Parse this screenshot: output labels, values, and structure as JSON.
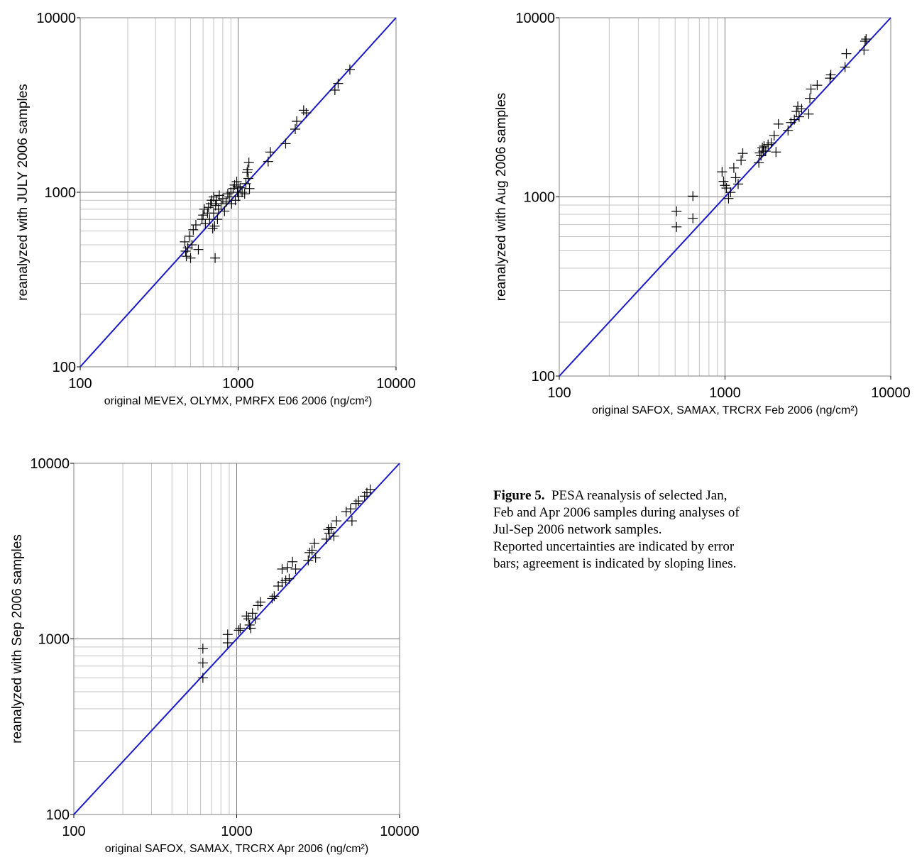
{
  "chart_data": [
    {
      "type": "scatter",
      "xlabel": "original MEVEX, OLYMX, PMRFX E06 2006 (ng/cm²)",
      "ylabel": "reanalyzed with JULY 2006 samples",
      "xscale": "log",
      "yscale": "log",
      "xlim": [
        100,
        10000
      ],
      "ylim": [
        100,
        10000
      ],
      "xticks": [
        "100",
        "1000",
        "10000"
      ],
      "yticks": [
        "100",
        "1000",
        "10000"
      ],
      "grid": true,
      "reference_line": {
        "from": [
          100,
          100
        ],
        "to": [
          10000,
          10000
        ],
        "color": "#1a1acc"
      },
      "points": [
        [
          460,
          520
        ],
        [
          465,
          460
        ],
        [
          470,
          430
        ],
        [
          480,
          480
        ],
        [
          490,
          560
        ],
        [
          500,
          420
        ],
        [
          510,
          500
        ],
        [
          520,
          610
        ],
        [
          540,
          650
        ],
        [
          560,
          470
        ],
        [
          590,
          700
        ],
        [
          600,
          740
        ],
        [
          610,
          800
        ],
        [
          620,
          660
        ],
        [
          640,
          760
        ],
        [
          650,
          820
        ],
        [
          660,
          700
        ],
        [
          670,
          860
        ],
        [
          680,
          900
        ],
        [
          690,
          620
        ],
        [
          700,
          940
        ],
        [
          700,
          760
        ],
        [
          710,
          640
        ],
        [
          715,
          420
        ],
        [
          720,
          840
        ],
        [
          730,
          900
        ],
        [
          740,
          700
        ],
        [
          750,
          800
        ],
        [
          760,
          960
        ],
        [
          780,
          860
        ],
        [
          800,
          920
        ],
        [
          820,
          780
        ],
        [
          840,
          880
        ],
        [
          860,
          980
        ],
        [
          880,
          940
        ],
        [
          900,
          1000
        ],
        [
          910,
          860
        ],
        [
          930,
          1050
        ],
        [
          950,
          1100
        ],
        [
          960,
          900
        ],
        [
          980,
          1150
        ],
        [
          990,
          1000
        ],
        [
          1000,
          1080
        ],
        [
          1010,
          950
        ],
        [
          1030,
          1060
        ],
        [
          1060,
          1000
        ],
        [
          1100,
          980
        ],
        [
          1120,
          1120
        ],
        [
          1140,
          1300
        ],
        [
          1150,
          1350
        ],
        [
          1160,
          1200
        ],
        [
          1170,
          1480
        ],
        [
          1180,
          1050
        ],
        [
          1550,
          1500
        ],
        [
          1600,
          1700
        ],
        [
          2000,
          1900
        ],
        [
          2300,
          2300
        ],
        [
          2350,
          2550
        ],
        [
          2600,
          2950
        ],
        [
          2700,
          2850
        ],
        [
          4100,
          3850
        ],
        [
          4300,
          4200
        ],
        [
          5100,
          5050
        ]
      ]
    },
    {
      "type": "scatter",
      "xlabel": "original SAFOX, SAMAX, TRCRX Feb 2006 (ng/cm²)",
      "ylabel": "reanalyzed with Aug 2006 samples",
      "xscale": "log",
      "yscale": "log",
      "xlim": [
        100,
        10000
      ],
      "ylim": [
        100,
        10000
      ],
      "xticks": [
        "100",
        "1000",
        "10000"
      ],
      "yticks": [
        "100",
        "1000",
        "10000"
      ],
      "grid": true,
      "reference_line": {
        "from": [
          100,
          100
        ],
        "to": [
          10000,
          10000
        ],
        "color": "#1a1acc"
      },
      "points": [
        [
          510,
          830
        ],
        [
          510,
          680
        ],
        [
          640,
          1010
        ],
        [
          640,
          760
        ],
        [
          960,
          1380
        ],
        [
          980,
          1220
        ],
        [
          1000,
          1160
        ],
        [
          1020,
          1120
        ],
        [
          1050,
          980
        ],
        [
          1080,
          1060
        ],
        [
          1130,
          1450
        ],
        [
          1160,
          1280
        ],
        [
          1200,
          1180
        ],
        [
          1250,
          1600
        ],
        [
          1280,
          1750
        ],
        [
          1600,
          1550
        ],
        [
          1620,
          1760
        ],
        [
          1650,
          1700
        ],
        [
          1680,
          1880
        ],
        [
          1700,
          1800
        ],
        [
          1720,
          1920
        ],
        [
          1760,
          1800
        ],
        [
          1820,
          1960
        ],
        [
          1900,
          2000
        ],
        [
          1980,
          2200
        ],
        [
          2030,
          1780
        ],
        [
          2100,
          2550
        ],
        [
          2400,
          2350
        ],
        [
          2500,
          2600
        ],
        [
          2620,
          2700
        ],
        [
          2700,
          3000
        ],
        [
          2750,
          3200
        ],
        [
          2800,
          2800
        ],
        [
          2900,
          3100
        ],
        [
          3200,
          2900
        ],
        [
          3250,
          3550
        ],
        [
          3300,
          4000
        ],
        [
          3600,
          4200
        ],
        [
          4300,
          4600
        ],
        [
          4350,
          4800
        ],
        [
          5300,
          5300
        ],
        [
          5400,
          6300
        ],
        [
          6900,
          6600
        ],
        [
          7000,
          7400
        ],
        [
          7100,
          7600
        ]
      ]
    },
    {
      "type": "scatter",
      "xlabel": "original SAFOX, SAMAX, TRCRX Apr 2006 (ng/cm²)",
      "ylabel": "reanalyzed with Sep 2006 samples",
      "xscale": "log",
      "yscale": "log",
      "xlim": [
        100,
        10000
      ],
      "ylim": [
        100,
        10000
      ],
      "xticks": [
        "100",
        "1000",
        "10000"
      ],
      "yticks": [
        "100",
        "1000",
        "10000"
      ],
      "grid": true,
      "reference_line": {
        "from": [
          100,
          100
        ],
        "to": [
          10000,
          10000
        ],
        "color": "#1a1acc"
      },
      "points": [
        [
          620,
          880
        ],
        [
          620,
          730
        ],
        [
          620,
          600
        ],
        [
          880,
          1060
        ],
        [
          880,
          950
        ],
        [
          1030,
          1120
        ],
        [
          1050,
          1150
        ],
        [
          1150,
          1350
        ],
        [
          1180,
          1300
        ],
        [
          1200,
          1200
        ],
        [
          1220,
          1150
        ],
        [
          1250,
          1400
        ],
        [
          1300,
          1300
        ],
        [
          1350,
          1550
        ],
        [
          1400,
          1620
        ],
        [
          1650,
          1700
        ],
        [
          1700,
          1750
        ],
        [
          1800,
          2000
        ],
        [
          1900,
          2100
        ],
        [
          1900,
          2500
        ],
        [
          2000,
          2150
        ],
        [
          2050,
          2550
        ],
        [
          2100,
          2200
        ],
        [
          2200,
          2750
        ],
        [
          2300,
          2500
        ],
        [
          2750,
          2800
        ],
        [
          2800,
          3100
        ],
        [
          2900,
          3200
        ],
        [
          3000,
          3500
        ],
        [
          3050,
          2900
        ],
        [
          3550,
          3700
        ],
        [
          3650,
          4200
        ],
        [
          3700,
          4000
        ],
        [
          3800,
          4300
        ],
        [
          3950,
          3850
        ],
        [
          4100,
          4700
        ],
        [
          4700,
          5300
        ],
        [
          5000,
          5500
        ],
        [
          5100,
          4700
        ],
        [
          5400,
          5900
        ],
        [
          5600,
          6100
        ],
        [
          6100,
          6500
        ],
        [
          6300,
          6800
        ],
        [
          6600,
          7100
        ]
      ]
    }
  ],
  "caption": {
    "label": "Figure 5.",
    "line1": "PESA reanalysis of selected Jan,",
    "line2": "Feb and Apr 2006 samples during analyses of",
    "line3": "Jul-Sep 2006 network samples.",
    "line4": "Reported uncertainties are indicated by error",
    "line5": "bars; agreement is indicated by sloping lines."
  }
}
